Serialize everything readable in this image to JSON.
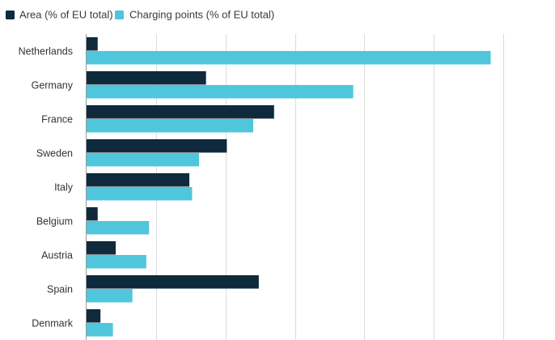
{
  "chart_data": {
    "type": "bar",
    "orientation": "horizontal",
    "categories": [
      "Netherlands",
      "Germany",
      "France",
      "Sweden",
      "Italy",
      "Belgium",
      "Austria",
      "Spain",
      "Denmark"
    ],
    "series": [
      {
        "name": "Area (% of EU total)",
        "color": "#0f2a3d",
        "values": [
          0.8,
          8.6,
          13.5,
          10.1,
          7.4,
          0.8,
          2.1,
          12.4,
          1.0
        ]
      },
      {
        "name": "Charging points (% of EU total)",
        "color": "#4fc6dc",
        "values": [
          29.1,
          19.2,
          12.0,
          8.1,
          7.6,
          4.5,
          4.3,
          3.3,
          1.9
        ]
      }
    ],
    "xlim": [
      0,
      30
    ],
    "x_gridlines": [
      0,
      5,
      10,
      15,
      20,
      25,
      30
    ],
    "grid": true,
    "x_tick_labels_visible": false,
    "legend_position": "top-left"
  }
}
